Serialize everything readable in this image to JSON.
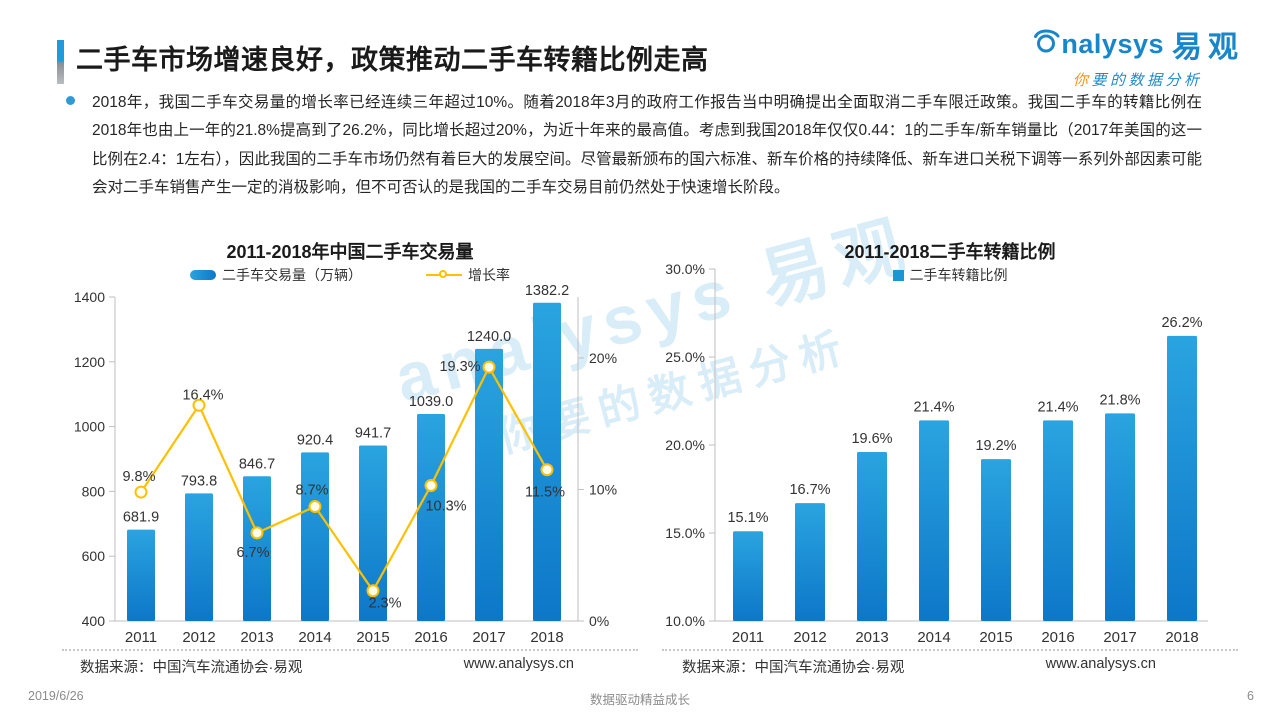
{
  "header": {
    "title": "二手车市场增速良好，政策推动二手车转籍比例走高"
  },
  "logo": {
    "brand_en": "nalysys",
    "brand_cn": "易观",
    "tagline_first": "你",
    "tagline_rest": "要的数据分析"
  },
  "summary": {
    "text": "2018年，我国二手车交易量的增长率已经连续三年超过10%。随着2018年3月的政府工作报告当中明确提出全面取消二手车限迁政策。我国二手车的转籍比例在2018年也由上一年的21.8%提高到了26.2%，同比增长超过20%，为近十年来的最高值。考虑到我国2018年仅仅0.44：1的二手车/新车销量比（2017年美国的这一比例在2.4：1左右），因此我国的二手车市场仍然有着巨大的发展空间。尽管最新颁布的国六标准、新车价格的持续降低、新车进口关税下调等一系列外部因素可能会对二手车销售产生一定的消极影响，但不可否认的是我国的二手车交易目前仍然处于快速增长阶段。"
  },
  "watermark": {
    "line1": "analysys 易观",
    "line2": "你要的数据分析"
  },
  "chart_data": [
    {
      "type": "bar+line combo",
      "title": "2011-2018年中国二手车交易量",
      "categories": [
        "2011",
        "2012",
        "2013",
        "2014",
        "2015",
        "2016",
        "2017",
        "2018"
      ],
      "series": [
        {
          "name": "二手车交易量（万辆）",
          "type": "bar",
          "values": [
            681.9,
            793.8,
            846.7,
            920.4,
            941.7,
            1039.0,
            1240.0,
            1382.2
          ],
          "labels": [
            "681.9",
            "793.8",
            "846.7",
            "920.4",
            "941.7",
            "1039.0",
            "1240.0",
            "1382.2"
          ]
        },
        {
          "name": "增长率",
          "type": "line",
          "values": [
            9.8,
            16.4,
            6.7,
            8.7,
            2.3,
            10.3,
            19.3,
            11.5
          ],
          "labels": [
            "9.8%",
            "16.4%",
            "6.7%",
            "8.7%",
            "2.3%",
            "10.3%",
            "19.3%",
            "11.5%"
          ]
        }
      ],
      "left_axis": {
        "min": 400,
        "max": 1400,
        "ticks": [
          "400",
          "600",
          "800",
          "1000",
          "1200",
          "1400"
        ]
      },
      "right_axis": {
        "min": 0,
        "max": 20,
        "ticks": [
          "0%",
          "10%",
          "20%"
        ]
      },
      "grid": "off",
      "legend_position": "top",
      "source": "数据来源：中国汽车流通协会·易观",
      "url": "www.analysys.cn",
      "colors": {
        "bar_top": "#2aa4e0",
        "bar_bottom": "#0d77c8",
        "line": "#ffc000",
        "axis": "#bfbfbf",
        "label": "#333333"
      }
    },
    {
      "type": "bar",
      "title": "2011-2018二手车转籍比例",
      "legend": "二手车转籍比例",
      "categories": [
        "2011",
        "2012",
        "2013",
        "2014",
        "2015",
        "2016",
        "2017",
        "2018"
      ],
      "values": [
        15.1,
        16.7,
        19.6,
        21.4,
        19.2,
        21.4,
        21.8,
        26.2
      ],
      "labels": [
        "15.1%",
        "16.7%",
        "19.6%",
        "21.4%",
        "19.2%",
        "21.4%",
        "21.8%",
        "26.2%"
      ],
      "y_axis": {
        "min": 10,
        "max": 30,
        "ticks": [
          "10.0%",
          "15.0%",
          "20.0%",
          "25.0%",
          "30.0%"
        ]
      },
      "grid": "off",
      "legend_position": "top",
      "source": "数据来源：中国汽车流通协会·易观",
      "url": "www.analysys.cn",
      "colors": {
        "bar_top": "#2aa4e0",
        "bar_bottom": "#0d77c8",
        "axis": "#bfbfbf",
        "label": "#333333"
      }
    }
  ],
  "page": {
    "date": "2019/6/26",
    "motto": "数据驱动精益成长",
    "page_number": "6"
  }
}
